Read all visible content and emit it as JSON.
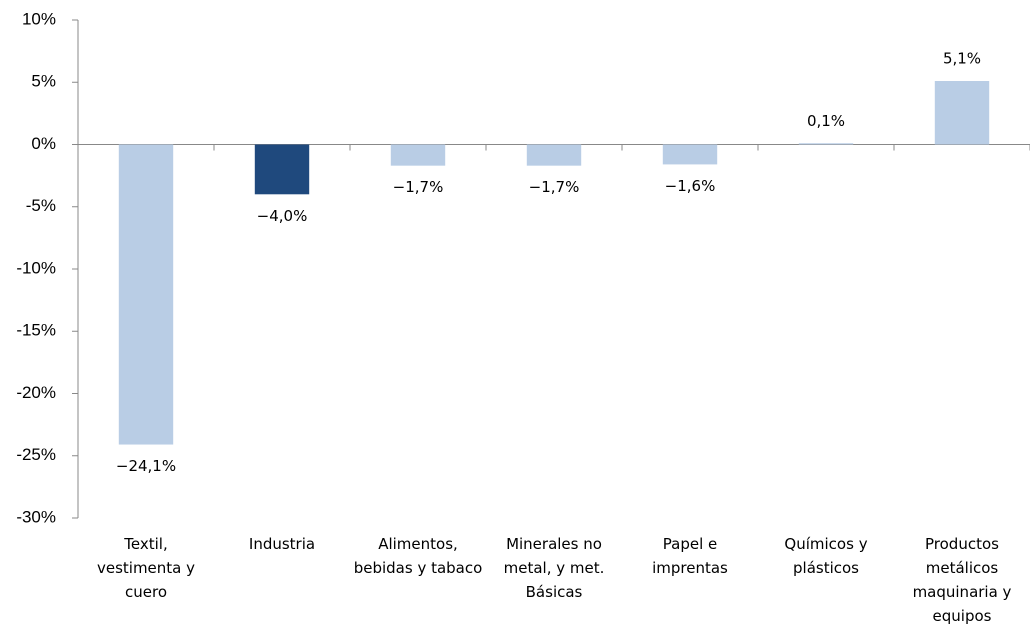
{
  "chart_data": {
    "type": "bar",
    "categories": [
      "Textil, vestimenta y cuero",
      "Industria",
      "Alimentos, bebidas y tabaco",
      "Minerales no metal, y met. Básicas",
      "Papel e imprentas",
      "Químicos y plásticos",
      "Productos metálicos maquinaria y equipos"
    ],
    "values": [
      -24.1,
      -4.0,
      -1.7,
      -1.7,
      -1.6,
      0.1,
      5.1
    ],
    "value_labels": [
      "−24,1%",
      "−4,0%",
      "−1,7%",
      "−1,7%",
      "−1,6%",
      "0,1%",
      "5,1%"
    ],
    "colors": [
      "#b9cde5",
      "#1f497d",
      "#b9cde5",
      "#b9cde5",
      "#b9cde5",
      "#b9cde5",
      "#b9cde5"
    ],
    "ylim": [
      -30,
      10
    ],
    "yticks": [
      {
        "value": -30,
        "label": "-30%"
      },
      {
        "value": -25,
        "label": "-25%"
      },
      {
        "value": -20,
        "label": "-20%"
      },
      {
        "value": -15,
        "label": "-15%"
      },
      {
        "value": -10,
        "label": "-10%"
      },
      {
        "value": -5,
        "label": "-5%"
      },
      {
        "value": 0,
        "label": "0%"
      },
      {
        "value": 5,
        "label": "5%"
      },
      {
        "value": 10,
        "label": "10%"
      }
    ],
    "grid": false
  }
}
